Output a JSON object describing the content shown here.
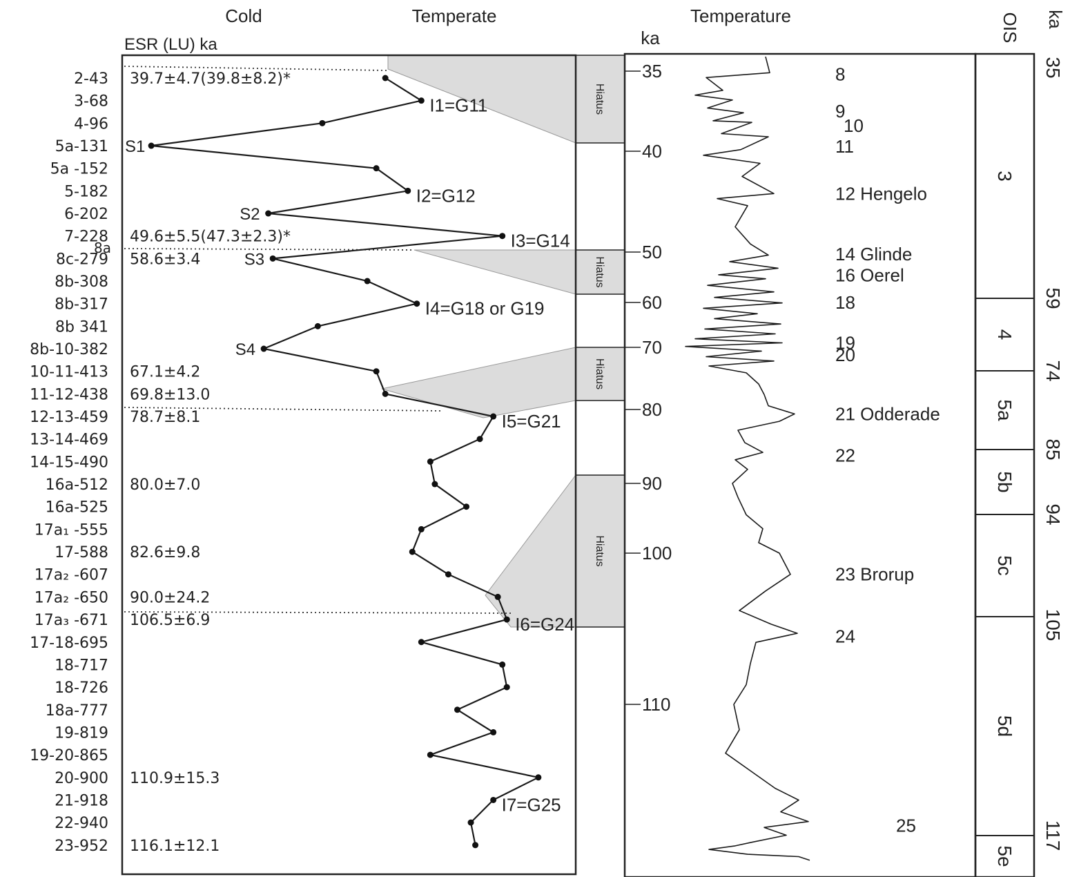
{
  "chart_data": [
    {
      "type": "line",
      "panel": "left",
      "header_cold": "Cold",
      "header_temperate": "Temperate",
      "esr_header": "ESR (LU) ka",
      "samples": [
        "2-43",
        "3-68",
        "4-96",
        "5a-131",
        "5a -152",
        "5-182",
        "6-202",
        "7-228",
        "8c-279",
        "8b-308",
        "8b-317",
        "8b 341",
        "8b-10-382",
        "10-11-413",
        "11-12-438",
        "12-13-459",
        "13-14-469",
        "14-15-490",
        "16a-512",
        "16a-525",
        "17a₁ -555",
        "17-588",
        "17a₂ -607",
        "17a₂ -650",
        "17a₃ -671",
        "17-18-695",
        "18-717",
        "18-726",
        "18a-777",
        "19-819",
        "19-20-865",
        "20-900",
        "21-918",
        "22-940",
        "23-952"
      ],
      "sample_8a": "8a",
      "esr_dates": [
        {
          "sample": "2-43",
          "text": "39.7±4.7(39.8±8.2)*"
        },
        {
          "sample": "7-228",
          "text": "49.6±5.5(47.3±2.3)*"
        },
        {
          "sample": "8c-279",
          "text": "58.6±3.4"
        },
        {
          "sample": "10-11-413",
          "text": "67.1±4.2"
        },
        {
          "sample": "11-12-438",
          "text": "69.8±13.0"
        },
        {
          "sample": "12-13-459",
          "text": "78.7±8.1"
        },
        {
          "sample": "16a-512",
          "text": "80.0±7.0"
        },
        {
          "sample": "17-588",
          "text": "82.6±9.8"
        },
        {
          "sample": "17a₂ -650",
          "text": "90.0±24.2"
        },
        {
          "sample": "17a₃ -671",
          "text": "106.5±6.9"
        },
        {
          "sample": "20-900",
          "text": "110.9±15.3"
        },
        {
          "sample": "23-952",
          "text": "116.1±12.1"
        }
      ],
      "temperature_index": [
        0.58,
        0.66,
        0.44,
        0.06,
        0.56,
        0.63,
        0.32,
        0.84,
        0.33,
        0.54,
        0.65,
        0.43,
        0.31,
        0.56,
        0.58,
        0.82,
        0.79,
        0.68,
        0.69,
        0.76,
        0.66,
        0.64,
        0.72,
        0.83,
        0.85,
        0.66,
        0.84,
        0.85,
        0.74,
        0.82,
        0.68,
        0.92,
        0.82,
        0.77,
        0.78
      ],
      "temperature_index_note": "0 = Cold, 1 = Temperate",
      "peak_labels": [
        {
          "sample": "3-68",
          "text": "I1=G11"
        },
        {
          "sample": "5-182",
          "text": "I2=G12"
        },
        {
          "sample": "7-228",
          "text": "I3=G14"
        },
        {
          "sample": "8b-317",
          "text": "I4=G18 or G19"
        },
        {
          "sample": "12-13-459",
          "text": "I5=G21"
        },
        {
          "sample": "17a₃ -671",
          "text": "I6=G24"
        },
        {
          "sample": "21-918",
          "text": "I7=G25"
        }
      ],
      "stadial_labels": [
        {
          "sample": "5a-131",
          "text": "S1"
        },
        {
          "sample": "6-202",
          "text": "S2"
        },
        {
          "sample": "8c-279",
          "text": "S3"
        },
        {
          "sample": "8b-10-382",
          "text": "S4"
        }
      ],
      "hiatus_label": "Hiatus",
      "hiatus_intervals_ka": [
        [
          35,
          40
        ],
        [
          50,
          59
        ],
        [
          70,
          80
        ],
        [
          90,
          106
        ]
      ]
    },
    {
      "type": "line",
      "panel": "right",
      "title": "Temperature",
      "y_unit": "ka",
      "y_ticks": [
        35,
        40,
        50,
        60,
        70,
        80,
        90,
        100,
        110
      ],
      "interstadials": [
        {
          "ka": 35.2,
          "text": "8"
        },
        {
          "ka": 37.5,
          "text": "9"
        },
        {
          "ka": 38.4,
          "text": "10"
        },
        {
          "ka": 39.7,
          "text": "11"
        },
        {
          "ka": 44.2,
          "text": "12 Hengelo"
        },
        {
          "ka": 50.4,
          "text": "14 Glinde"
        },
        {
          "ka": 54.6,
          "text": "16 Oerel"
        },
        {
          "ka": 60.0,
          "text": "18"
        },
        {
          "ka": 69.0,
          "text": "19"
        },
        {
          "ka": 71.2,
          "text": "20"
        },
        {
          "ka": 80.6,
          "text": "21 Odderade"
        },
        {
          "ka": 86.2,
          "text": "22"
        },
        {
          "ka": 101.4,
          "text": "23 Brorup"
        },
        {
          "ka": 105.5,
          "text": "24"
        },
        {
          "ka": 116.2,
          "text": "25"
        }
      ],
      "curve": {
        "ka": [
          34.1,
          35.1,
          35.4,
          36.2,
          36.5,
          36.8,
          37.3,
          37.6,
          38.1,
          38.2,
          38.9,
          39.1,
          39.9,
          40.4,
          41.2,
          42.5,
          44.2,
          44.7,
          45.4,
          47.5,
          49.2,
          50.6,
          51.9,
          53.2,
          54.5,
          55.3,
          56.6,
          57.9,
          59.0,
          60.1,
          61.3,
          62.5,
          63.6,
          64.8,
          65.9,
          67.0,
          68.1,
          69.0,
          69.8,
          70.6,
          71.5,
          72.2,
          73.0,
          74.1,
          75.9,
          77.6,
          79.4,
          80.6,
          81.6,
          82.8,
          84.5,
          85.8,
          86.8,
          88.1,
          90.0,
          92.0,
          94.5,
          96.5,
          98.5,
          100.0,
          101.4,
          102.5,
          103.8,
          104.7,
          105.3,
          105.9,
          107.3,
          108.7,
          110.0,
          111.3,
          112.5,
          113.5,
          114.3,
          114.9,
          115.5,
          116.0,
          116.3,
          116.7,
          117.1,
          117.4,
          117.7,
          118.1,
          118.3,
          118.6
        ],
        "t": [
          0.62,
          0.65,
          0.19,
          0.31,
          0.11,
          0.38,
          0.2,
          0.46,
          0.24,
          0.52,
          0.3,
          0.64,
          0.44,
          0.17,
          0.58,
          0.45,
          0.68,
          0.27,
          0.49,
          0.4,
          0.51,
          0.64,
          0.36,
          0.71,
          0.28,
          0.62,
          0.2,
          0.68,
          0.25,
          0.74,
          0.17,
          0.56,
          0.25,
          0.73,
          0.18,
          0.69,
          0.11,
          0.74,
          0.04,
          0.59,
          0.19,
          0.68,
          0.21,
          0.48,
          0.57,
          0.61,
          0.64,
          0.83,
          0.72,
          0.42,
          0.47,
          0.6,
          0.4,
          0.49,
          0.38,
          0.42,
          0.48,
          0.6,
          0.57,
          0.72,
          0.8,
          0.62,
          0.43,
          0.66,
          0.85,
          0.55,
          0.51,
          0.48,
          0.39,
          0.43,
          0.33,
          0.53,
          0.69,
          0.86,
          0.73,
          0.93,
          0.61,
          0.77,
          0.52,
          0.4,
          0.21,
          0.49,
          0.86,
          0.94
        ]
      }
    },
    {
      "type": "table",
      "panel": "OIS",
      "header": "OIS",
      "age_unit": "ka",
      "stages": [
        {
          "label": "3",
          "from": 35,
          "to": 59
        },
        {
          "label": "4",
          "from": 59,
          "to": 74
        },
        {
          "label": "5a",
          "from": 74,
          "to": 85
        },
        {
          "label": "5b",
          "from": 85,
          "to": 94
        },
        {
          "label": "5c",
          "from": 94,
          "to": 105
        },
        {
          "label": "5d",
          "from": 105,
          "to": 117
        },
        {
          "label": "5e",
          "from": 117,
          "to": null
        }
      ],
      "boundary_labels": [
        "35",
        "59",
        "74",
        "85",
        "94",
        "105",
        "117"
      ]
    }
  ]
}
